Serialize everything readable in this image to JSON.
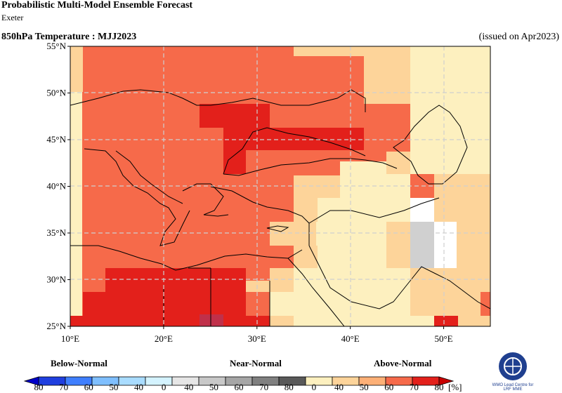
{
  "header": {
    "title": "Probabilistic Multi-Model Ensemble Forecast",
    "center": "Exeter",
    "variable_period": "850hPa Temperature : MJJ2023",
    "issued": "(issued on Apr2023)"
  },
  "map": {
    "lon_range": [
      10,
      55
    ],
    "lat_range": [
      25,
      55
    ],
    "lat_ticks": [
      {
        "value": 55,
        "label": "55°N"
      },
      {
        "value": 50,
        "label": "50°N"
      },
      {
        "value": 45,
        "label": "45°N"
      },
      {
        "value": 40,
        "label": "40°N"
      },
      {
        "value": 35,
        "label": "35°N"
      },
      {
        "value": 30,
        "label": "30°N"
      },
      {
        "value": 25,
        "label": "25°N"
      }
    ],
    "lon_ticks": [
      {
        "value": 10,
        "label": "10°E"
      },
      {
        "value": 20,
        "label": "20°E"
      },
      {
        "value": 30,
        "label": "30°E"
      },
      {
        "value": 40,
        "label": "40°E"
      },
      {
        "value": 50,
        "label": "50°E"
      }
    ],
    "grid": "dashed",
    "default_category": "above_60_70"
  },
  "legend": {
    "categories": {
      "below": "Below-Normal",
      "near": "Near-Normal",
      "above": "Above-Normal"
    },
    "unit": "[%]",
    "tick_labels": [
      "80",
      "70",
      "60",
      "50",
      "40",
      "0",
      "40",
      "50",
      "60",
      "70",
      "80",
      "0",
      "40",
      "50",
      "60",
      "70",
      "80"
    ],
    "below_colors": [
      "#1f3fdf",
      "#3f7fff",
      "#7fbfff",
      "#a9dcff",
      "#d4f3ff"
    ],
    "near_colors": [
      "#e6e6e6",
      "#c8c8c8",
      "#a6a6a6",
      "#808080",
      "#595959"
    ],
    "above_colors": [
      "#fdf0bf",
      "#fdd49a",
      "#fdb077",
      "#f66a4a",
      "#e3201b"
    ]
  },
  "colors": {
    "above_40_50": "#fdf0bf",
    "above_50_60": "#fdd49a",
    "above_60_70": "#f66a4a",
    "above_70_80": "#e3201b",
    "near_40_50": "#d0d0d0",
    "white": "#ffffff"
  },
  "logo": {
    "name": "WMO Lead Centre for LRF MME"
  }
}
